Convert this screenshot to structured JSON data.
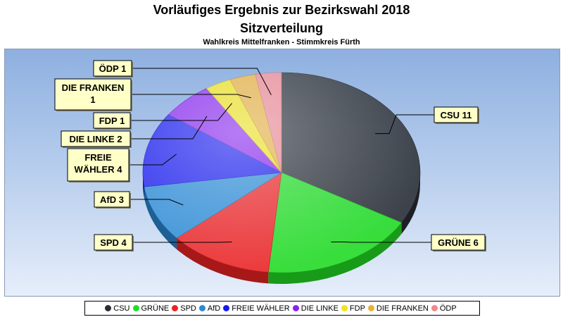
{
  "title_line1": "Vorläufiges Ergebnis zur Bezirkswahl 2018",
  "title_line2": "Sitzverteilung",
  "subtitle": "Wahlkreis Mittelfranken - Stimmkreis Fürth",
  "chart_data": {
    "type": "pie",
    "title": "Vorläufiges Ergebnis zur Bezirkswahl 2018 Sitzverteilung",
    "subtitle": "Wahlkreis Mittelfranken - Stimmkreis Fürth",
    "legend_position": "bottom",
    "series": [
      {
        "values": [
          {
            "label": "CSU",
            "value": 11,
            "callout": "CSU 11",
            "color": "#2a2d33"
          },
          {
            "label": "GRÜNE",
            "value": 6,
            "callout": "GRÜNE 6",
            "color": "#22dd22"
          },
          {
            "label": "SPD",
            "value": 4,
            "callout": "SPD 4",
            "color": "#ee2222"
          },
          {
            "label": "AfD",
            "value": 3,
            "callout": "AfD 3",
            "color": "#2a8ad4"
          },
          {
            "label": "FREIE WÄHLER",
            "value": 4,
            "callout": "FREIE WÄHLER 4",
            "color": "#1818ee"
          },
          {
            "label": "DIE LINKE",
            "value": 2,
            "callout": "DIE LINKE 2",
            "color": "#8a22ee"
          },
          {
            "label": "FDP",
            "value": 1,
            "callout": "FDP 1",
            "color": "#f2e418"
          },
          {
            "label": "DIE FRANKEN",
            "value": 1,
            "callout": "DIE FRANKEN 1",
            "color": "#eab03a"
          },
          {
            "label": "ÖDP",
            "value": 1,
            "callout": "ÖDP 1",
            "color": "#f08890"
          }
        ]
      }
    ]
  }
}
